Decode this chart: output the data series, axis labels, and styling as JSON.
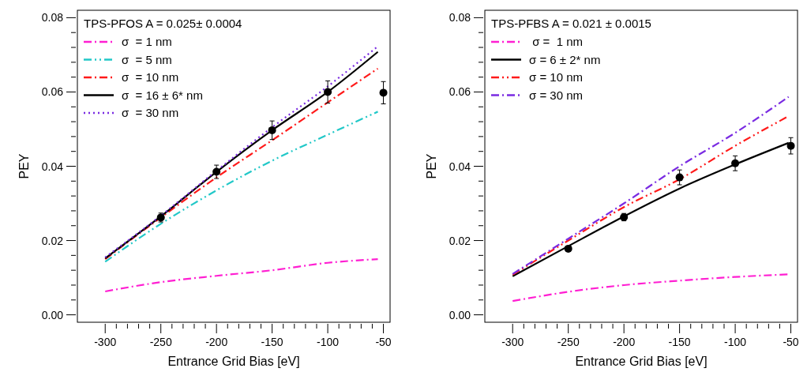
{
  "chart_data": [
    {
      "type": "line",
      "legend_title": "TPS-PFOS A = 0.025± 0.0004",
      "xlabel": "Entrance Grid Bias [eV]",
      "ylabel": "PEY",
      "xlim": [
        -325,
        -44
      ],
      "ylim": [
        -0.002,
        0.082
      ],
      "xticks": [
        -300,
        {
          "value": -290,
          "label": null
        },
        {
          "value": -280,
          "label": null
        },
        {
          "value": -270,
          "label": null
        },
        {
          "value": -260,
          "label": null
        },
        -250,
        {
          "value": -240,
          "label": null
        },
        {
          "value": -230,
          "label": null
        },
        {
          "value": -220,
          "label": null
        },
        {
          "value": -210,
          "label": null
        },
        -200,
        {
          "value": -190,
          "label": null
        },
        {
          "value": -180,
          "label": null
        },
        {
          "value": -170,
          "label": null
        },
        {
          "value": -160,
          "label": null
        },
        -150,
        {
          "value": -140,
          "label": null
        },
        {
          "value": -130,
          "label": null
        },
        {
          "value": -120,
          "label": null
        },
        {
          "value": -110,
          "label": null
        },
        -100,
        {
          "value": -90,
          "label": null
        },
        {
          "value": -80,
          "label": null
        },
        {
          "value": -70,
          "label": null
        },
        {
          "value": -60,
          "label": null
        },
        -50
      ],
      "yticks": [
        {
          "value": 0,
          "label": "0.00"
        },
        {
          "value": 0.004,
          "label": null
        },
        {
          "value": 0.008,
          "label": null
        },
        {
          "value": 0.012,
          "label": null
        },
        {
          "value": 0.016,
          "label": null
        },
        0.02,
        {
          "value": 0.024,
          "label": null
        },
        {
          "value": 0.028,
          "label": null
        },
        {
          "value": 0.032,
          "label": null
        },
        {
          "value": 0.036,
          "label": null
        },
        0.04,
        {
          "value": 0.044,
          "label": null
        },
        {
          "value": 0.048,
          "label": null
        },
        {
          "value": 0.052,
          "label": null
        },
        {
          "value": 0.056,
          "label": null
        },
        0.06,
        {
          "value": 0.064,
          "label": null
        },
        {
          "value": 0.068,
          "label": null
        },
        {
          "value": 0.072,
          "label": null
        },
        {
          "value": 0.076,
          "label": null
        },
        0.08
      ],
      "legend": "top left",
      "grid": false,
      "series": [
        {
          "name": "σ  = 1 nm",
          "color": "#ff1fd2",
          "line_style": "dashdot",
          "x": [
            -300,
            -250,
            -200,
            -150,
            -100,
            -55
          ],
          "values": [
            0.0063,
            0.0088,
            0.0105,
            0.012,
            0.014,
            0.015
          ]
        },
        {
          "name": "σ  = 5 nm",
          "color": "#22c8c8",
          "line_style": "dashdotdot",
          "x": [
            -300,
            -250,
            -200,
            -150,
            -100,
            -55
          ],
          "values": [
            0.0143,
            0.0245,
            0.0335,
            0.0415,
            0.0485,
            0.0547
          ]
        },
        {
          "name": "σ  = 10 nm",
          "color": "#ff1a1a",
          "line_style": "dashdot",
          "x": [
            -300,
            -250,
            -200,
            -150,
            -100,
            -55
          ],
          "values": [
            0.015,
            0.0262,
            0.037,
            0.047,
            0.0572,
            0.0663
          ]
        },
        {
          "name": "σ  = 16 ± 6* nm",
          "color": "#000000",
          "line_style": "solid",
          "x": [
            -300,
            -250,
            -200,
            -150,
            -100,
            -55
          ],
          "values": [
            0.0152,
            0.0265,
            0.0385,
            0.0497,
            0.06,
            0.0708
          ]
        },
        {
          "name": "σ  = 30 nm",
          "color": "#7a2be2",
          "line_style": "dotted",
          "x": [
            -300,
            -250,
            -200,
            -150,
            -100,
            -55
          ],
          "values": [
            0.0155,
            0.0267,
            0.0388,
            0.0505,
            0.0615,
            0.0723
          ]
        },
        {
          "type": "scatter",
          "marker": "circle",
          "color": "#000000",
          "x": [
            -250,
            -200,
            -150,
            -100,
            -50
          ],
          "values": [
            0.0262,
            0.0385,
            0.0497,
            0.06,
            0.0598
          ],
          "errors": [
            0.0012,
            0.0018,
            0.0025,
            0.003,
            0.003
          ]
        }
      ]
    },
    {
      "type": "line",
      "legend_title": "TPS-PFBS A = 0.021 ± 0.0015",
      "xlabel": "Entrance Grid Bias [eV]",
      "ylabel": "PEY",
      "xlim": [
        -325,
        -44
      ],
      "ylim": [
        -0.002,
        0.082
      ],
      "xticks": [
        -300,
        {
          "value": -290,
          "label": null
        },
        {
          "value": -280,
          "label": null
        },
        {
          "value": -270,
          "label": null
        },
        {
          "value": -260,
          "label": null
        },
        -250,
        {
          "value": -240,
          "label": null
        },
        {
          "value": -230,
          "label": null
        },
        {
          "value": -220,
          "label": null
        },
        {
          "value": -210,
          "label": null
        },
        -200,
        {
          "value": -190,
          "label": null
        },
        {
          "value": -180,
          "label": null
        },
        {
          "value": -170,
          "label": null
        },
        {
          "value": -160,
          "label": null
        },
        -150,
        {
          "value": -140,
          "label": null
        },
        {
          "value": -130,
          "label": null
        },
        {
          "value": -120,
          "label": null
        },
        {
          "value": -110,
          "label": null
        },
        -100,
        {
          "value": -90,
          "label": null
        },
        {
          "value": -80,
          "label": null
        },
        {
          "value": -70,
          "label": null
        },
        {
          "value": -60,
          "label": null
        },
        -50
      ],
      "yticks": [
        {
          "value": 0,
          "label": "0.00"
        },
        {
          "value": 0.004,
          "label": null
        },
        {
          "value": 0.008,
          "label": null
        },
        {
          "value": 0.012,
          "label": null
        },
        {
          "value": 0.016,
          "label": null
        },
        0.02,
        {
          "value": 0.024,
          "label": null
        },
        {
          "value": 0.028,
          "label": null
        },
        {
          "value": 0.032,
          "label": null
        },
        {
          "value": 0.036,
          "label": null
        },
        0.04,
        {
          "value": 0.044,
          "label": null
        },
        {
          "value": 0.048,
          "label": null
        },
        {
          "value": 0.052,
          "label": null
        },
        {
          "value": 0.056,
          "label": null
        },
        0.06,
        {
          "value": 0.064,
          "label": null
        },
        {
          "value": 0.068,
          "label": null
        },
        {
          "value": 0.072,
          "label": null
        },
        {
          "value": 0.076,
          "label": null
        },
        0.08
      ],
      "legend": "top left",
      "grid": false,
      "series": [
        {
          "name": " σ =  1 nm",
          "color": "#ff1fd2",
          "line_style": "dashdot",
          "x": [
            -300,
            -250,
            -200,
            -150,
            -100,
            -52
          ],
          "values": [
            0.0037,
            0.0062,
            0.008,
            0.0092,
            0.0102,
            0.0109
          ]
        },
        {
          "name": "σ = 6 ± 2* nm",
          "color": "#000000",
          "line_style": "solid",
          "x": [
            -300,
            -250,
            -200,
            -150,
            -100,
            -52
          ],
          "values": [
            0.0104,
            0.0185,
            0.0265,
            0.034,
            0.0405,
            0.0463
          ]
        },
        {
          "name": "σ = 10 nm",
          "color": "#ff1a1a",
          "line_style": "dashdotdot",
          "x": [
            -300,
            -250,
            -200,
            -150,
            -100,
            -52
          ],
          "values": [
            0.0108,
            0.02,
            0.029,
            0.0365,
            0.0455,
            0.0535
          ]
        },
        {
          "name": "σ = 30 nm",
          "color": "#7a2be2",
          "line_style": "dashdot",
          "x": [
            -300,
            -250,
            -200,
            -150,
            -100,
            -52
          ],
          "values": [
            0.011,
            0.0205,
            0.03,
            0.04,
            0.049,
            0.0587
          ]
        },
        {
          "type": "scatter",
          "marker": "circle",
          "color": "#000000",
          "x": [
            -250,
            -200,
            -150,
            -100,
            -50
          ],
          "values": [
            0.0178,
            0.0263,
            0.037,
            0.0408,
            0.0455
          ],
          "errors": [
            null,
            0.001,
            0.002,
            0.002,
            0.0022
          ]
        }
      ]
    }
  ]
}
